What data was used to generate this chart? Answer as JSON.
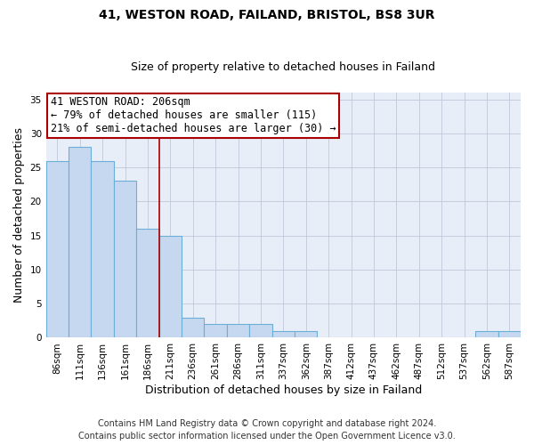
{
  "title": "41, WESTON ROAD, FAILAND, BRISTOL, BS8 3UR",
  "subtitle": "Size of property relative to detached houses in Failand",
  "xlabel": "Distribution of detached houses by size in Failand",
  "ylabel": "Number of detached properties",
  "footnote1": "Contains HM Land Registry data © Crown copyright and database right 2024.",
  "footnote2": "Contains public sector information licensed under the Open Government Licence v3.0.",
  "categories": [
    "86sqm",
    "111sqm",
    "136sqm",
    "161sqm",
    "186sqm",
    "211sqm",
    "236sqm",
    "261sqm",
    "286sqm",
    "311sqm",
    "337sqm",
    "362sqm",
    "387sqm",
    "412sqm",
    "437sqm",
    "462sqm",
    "487sqm",
    "512sqm",
    "537sqm",
    "562sqm",
    "587sqm"
  ],
  "values": [
    26,
    28,
    26,
    23,
    16,
    15,
    3,
    2,
    2,
    2,
    1,
    1,
    0,
    0,
    0,
    0,
    0,
    0,
    0,
    1,
    1
  ],
  "bar_color": "#c5d8f0",
  "bar_edge_color": "#6baed6",
  "vline_x_index": 4.5,
  "vline_color": "#aa0000",
  "annotation_title": "41 WESTON ROAD: 206sqm",
  "annotation_line1": "← 79% of detached houses are smaller (115)",
  "annotation_line2": "21% of semi-detached houses are larger (30) →",
  "annotation_box_facecolor": "#ffffff",
  "annotation_box_edgecolor": "#aa0000",
  "bg_color": "#e8eef8",
  "ylim": [
    0,
    36
  ],
  "yticks": [
    0,
    5,
    10,
    15,
    20,
    25,
    30,
    35
  ],
  "title_fontsize": 10,
  "subtitle_fontsize": 9,
  "axis_label_fontsize": 9,
  "tick_fontsize": 7.5,
  "annotation_fontsize": 8.5,
  "footnote_fontsize": 7
}
